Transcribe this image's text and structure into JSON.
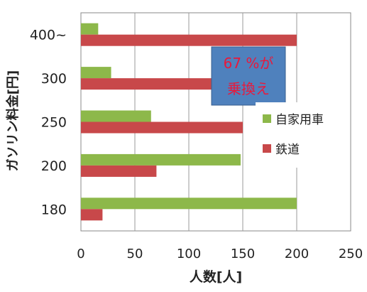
{
  "chart_data": {
    "type": "bar",
    "orientation": "horizontal",
    "categories": [
      "400~",
      "300",
      "250",
      "200",
      "180"
    ],
    "series": [
      {
        "name": "自家用車",
        "color": "#8db84a",
        "values": [
          16,
          28,
          65,
          148,
          200
        ]
      },
      {
        "name": "鉄道",
        "color": "#c8484a",
        "values": [
          200,
          125,
          150,
          70,
          20
        ]
      }
    ],
    "xlabel": "人数[人]",
    "ylabel": "ガソリン料金[円]",
    "xlim": [
      0,
      250
    ],
    "xticks": [
      0,
      50,
      100,
      150,
      200,
      250
    ],
    "grid": "vertical",
    "legend_position": "right-middle",
    "annotation": {
      "line1": "67 %が",
      "line2": "乗換え",
      "fill": "#4f81bd",
      "text_color": "#e8193c"
    }
  }
}
